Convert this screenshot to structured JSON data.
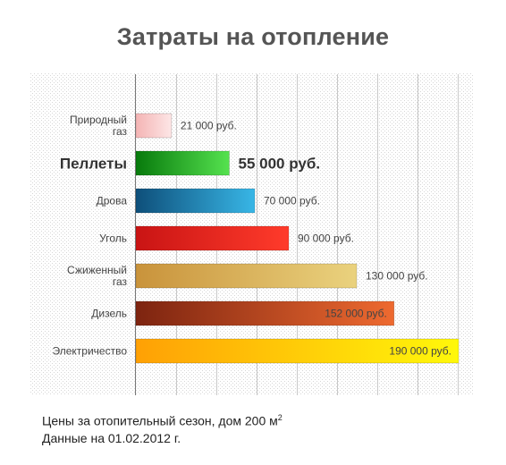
{
  "chart_data": {
    "type": "bar",
    "orientation": "horizontal",
    "title": "Затраты на отопление",
    "xlim": [
      0,
      200000
    ],
    "highlight_index": 1,
    "categories": [
      {
        "lines": [
          "Природный",
          "газ"
        ]
      },
      {
        "lines": [
          "Пеллеты"
        ]
      },
      {
        "lines": [
          "Дрова"
        ]
      },
      {
        "lines": [
          "Уголь"
        ]
      },
      {
        "lines": [
          "Сжиженный",
          "газ"
        ]
      },
      {
        "lines": [
          "Дизель"
        ]
      },
      {
        "lines": [
          "Электричество"
        ]
      }
    ],
    "values": [
      21000,
      55000,
      70000,
      90000,
      130000,
      152000,
      190000
    ],
    "value_labels": [
      "21 000 руб.",
      "55 000 руб.",
      "70 000 руб.",
      "90 000 руб.",
      "130 000 руб.",
      "152 000 руб.",
      "190 000 руб."
    ],
    "colors": [
      [
        "#f4b4b4",
        "#fde6e6"
      ],
      [
        "#087a0c",
        "#55e24f"
      ],
      [
        "#0e4f7a",
        "#38b6e6"
      ],
      [
        "#c91414",
        "#ff3b2b"
      ],
      [
        "#c9933b",
        "#ead27e"
      ],
      [
        "#7d2410",
        "#ee6a30"
      ],
      [
        "#ffa005",
        "#fff80a"
      ]
    ],
    "grid": true
  },
  "notes": {
    "line1": "Цены за отопительный сезон, дом 200 м",
    "line1_sup": "2",
    "line2": "Данные на 01.02.2012 г."
  }
}
